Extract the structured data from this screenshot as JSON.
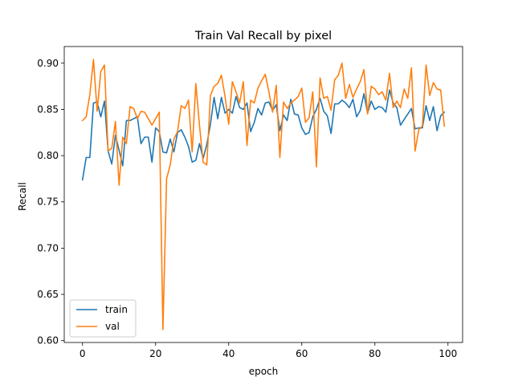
{
  "chart_data": {
    "type": "line",
    "title": "Train Val Recall by pixel",
    "xlabel": "epoch",
    "ylabel": "Recall",
    "xlim": [
      -5,
      104
    ],
    "ylim": [
      0.598,
      0.918
    ],
    "xticks": [
      0,
      20,
      40,
      60,
      80,
      100
    ],
    "yticks": [
      0.6,
      0.65,
      0.7,
      0.75,
      0.8,
      0.85,
      0.9
    ],
    "ytick_labels": [
      "0.60",
      "0.65",
      "0.70",
      "0.75",
      "0.80",
      "0.85",
      "0.90"
    ],
    "grid": false,
    "legend_position": "lower-left",
    "series": [
      {
        "name": "train",
        "color": "#1f77b4",
        "values": [
          0.774,
          0.798,
          0.798,
          0.857,
          0.858,
          0.842,
          0.859,
          0.805,
          0.791,
          0.822,
          0.806,
          0.789,
          0.838,
          0.838,
          0.84,
          0.842,
          0.813,
          0.82,
          0.82,
          0.793,
          0.83,
          0.826,
          0.804,
          0.803,
          0.818,
          0.804,
          0.825,
          0.828,
          0.82,
          0.81,
          0.793,
          0.795,
          0.813,
          0.797,
          0.812,
          0.834,
          0.863,
          0.84,
          0.863,
          0.846,
          0.85,
          0.846,
          0.864,
          0.852,
          0.85,
          0.857,
          0.826,
          0.836,
          0.851,
          0.844,
          0.857,
          0.858,
          0.849,
          0.855,
          0.827,
          0.844,
          0.838,
          0.861,
          0.845,
          0.844,
          0.83,
          0.823,
          0.825,
          0.842,
          0.85,
          0.862,
          0.848,
          0.843,
          0.824,
          0.856,
          0.856,
          0.86,
          0.857,
          0.852,
          0.861,
          0.842,
          0.849,
          0.867,
          0.846,
          0.859,
          0.85,
          0.853,
          0.852,
          0.847,
          0.871,
          0.857,
          0.852,
          0.833,
          0.839,
          0.845,
          0.851,
          0.829,
          0.83,
          0.83,
          0.854,
          0.838,
          0.853,
          0.827,
          0.843,
          0.847
        ]
      },
      {
        "name": "val",
        "color": "#ff7f0e",
        "values": [
          0.838,
          0.842,
          0.866,
          0.904,
          0.848,
          0.891,
          0.898,
          0.805,
          0.808,
          0.837,
          0.768,
          0.82,
          0.813,
          0.853,
          0.851,
          0.84,
          0.848,
          0.847,
          0.84,
          0.833,
          0.84,
          0.847,
          0.612,
          0.775,
          0.79,
          0.818,
          0.826,
          0.854,
          0.851,
          0.86,
          0.804,
          0.878,
          0.833,
          0.793,
          0.79,
          0.865,
          0.875,
          0.878,
          0.887,
          0.864,
          0.834,
          0.88,
          0.869,
          0.857,
          0.88,
          0.811,
          0.86,
          0.857,
          0.873,
          0.881,
          0.888,
          0.869,
          0.847,
          0.876,
          0.798,
          0.858,
          0.851,
          0.857,
          0.86,
          0.864,
          0.873,
          0.836,
          0.841,
          0.869,
          0.788,
          0.884,
          0.862,
          0.864,
          0.849,
          0.882,
          0.887,
          0.9,
          0.862,
          0.877,
          0.863,
          0.872,
          0.88,
          0.893,
          0.845,
          0.875,
          0.872,
          0.866,
          0.869,
          0.86,
          0.889,
          0.852,
          0.859,
          0.852,
          0.872,
          0.862,
          0.895,
          0.805,
          0.828,
          0.832,
          0.898,
          0.865,
          0.879,
          0.872,
          0.871,
          0.832
        ]
      }
    ]
  }
}
